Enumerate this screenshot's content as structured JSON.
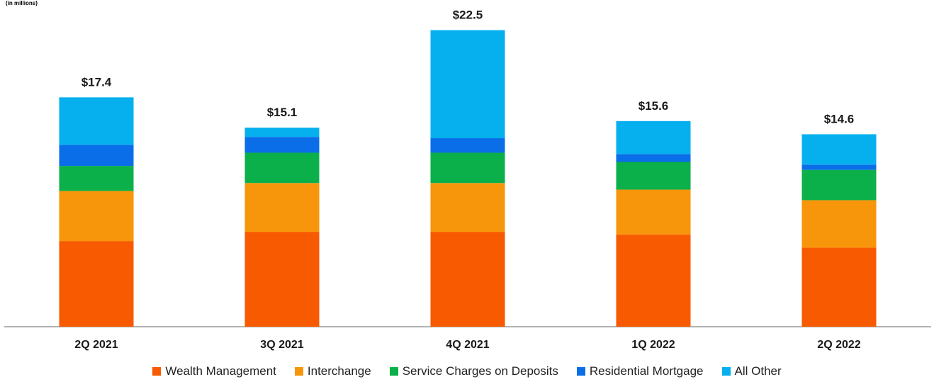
{
  "chart_data": {
    "type": "bar",
    "stacked": true,
    "unit_note": "(in millions)",
    "categories": [
      "2Q 2021",
      "3Q 2021",
      "4Q 2021",
      "1Q 2022",
      "2Q 2022"
    ],
    "totals": [
      17.4,
      15.1,
      22.5,
      15.6,
      14.6
    ],
    "total_labels": [
      "$17.4",
      "$15.1",
      "$22.5",
      "$15.6",
      "$14.6"
    ],
    "series": [
      {
        "name": "Wealth Management",
        "color": "#F75A00",
        "values": [
          6.5,
          7.2,
          7.2,
          7.0,
          6.0
        ]
      },
      {
        "name": "Interchange",
        "color": "#F7960A",
        "values": [
          3.8,
          3.7,
          3.7,
          3.4,
          3.6
        ]
      },
      {
        "name": "Service Charges on Deposits",
        "color": "#0BB04A",
        "values": [
          1.9,
          2.3,
          2.3,
          2.1,
          2.3
        ]
      },
      {
        "name": "Residential Mortgage",
        "color": "#0A6EE8",
        "values": [
          1.6,
          1.2,
          1.1,
          0.6,
          0.4
        ]
      },
      {
        "name": "All Other",
        "color": "#06B0EE",
        "values": [
          3.6,
          0.7,
          8.2,
          2.5,
          2.3
        ]
      }
    ],
    "ylim": [
      0,
      25
    ],
    "grid": false,
    "legend_position": "bottom"
  }
}
